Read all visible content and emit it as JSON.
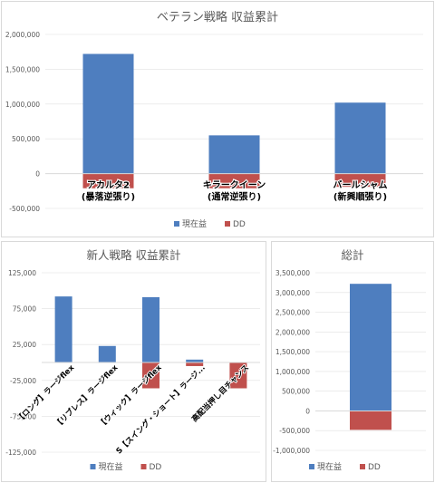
{
  "colors": {
    "current": "#4e7ebf",
    "dd": "#c0504d",
    "axis": "#d9d9d9",
    "grid": "#e0e0e0",
    "text": "#595959"
  },
  "chart_data": [
    {
      "type": "bar",
      "title": "ベテラン戦略 収益累計",
      "categories": [
        "アカルタ2\n(暴落逆張り)",
        "キラークイーン\n(通常逆張り)",
        "バールシャム\n(新興順張り)"
      ],
      "series": [
        {
          "name": "現在益",
          "values": [
            1720000,
            550000,
            1020000
          ]
        },
        {
          "name": "DD",
          "values": [
            -210000,
            -210000,
            -190000
          ]
        }
      ],
      "yticks": [
        "2,000,000",
        "1,500,000",
        "1,000,000",
        "500,000",
        "0",
        "-500,000"
      ],
      "ylim": [
        -500000,
        2000000
      ],
      "legend": [
        "現在益",
        "DD"
      ]
    },
    {
      "type": "bar",
      "title": "新人戦略 収益累計",
      "categories": [
        "【ロング】ラージflex",
        "【リブレス】ラージflex",
        "【ウィック】ラージflex",
        "S【スイング・ショート】ラージ...",
        "高配当押し目チャンス"
      ],
      "series": [
        {
          "name": "現在益",
          "values": [
            92000,
            23000,
            91000,
            4000,
            0
          ]
        },
        {
          "name": "DD",
          "values": [
            0,
            0,
            -36000,
            -5000,
            -36000
          ]
        }
      ],
      "yticks": [
        "125,000",
        "75,000",
        "25,000",
        "-25,000",
        "-75,000",
        "-125,000"
      ],
      "ylim": [
        -125000,
        125000
      ],
      "legend": [
        "現在益",
        "DD"
      ]
    },
    {
      "type": "bar",
      "title": "総計",
      "categories": [
        ""
      ],
      "series": [
        {
          "name": "現在益",
          "values": [
            3220000
          ]
        },
        {
          "name": "DD",
          "values": [
            -480000
          ]
        }
      ],
      "yticks": [
        "3,500,000",
        "3,000,000",
        "2,500,000",
        "2,000,000",
        "1,500,000",
        "1,000,000",
        "500,000",
        "0",
        "-500,000",
        "-1,000,000"
      ],
      "ylim": [
        -1000000,
        3500000
      ],
      "legend": [
        "現在益",
        "DD"
      ]
    }
  ]
}
